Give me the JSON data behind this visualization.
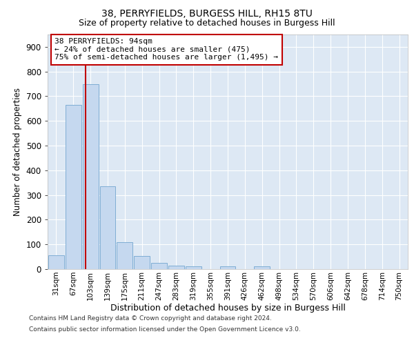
{
  "title1": "38, PERRYFIELDS, BURGESS HILL, RH15 8TU",
  "title2": "Size of property relative to detached houses in Burgess Hill",
  "xlabel": "Distribution of detached houses by size in Burgess Hill",
  "ylabel": "Number of detached properties",
  "footer1": "Contains HM Land Registry data © Crown copyright and database right 2024.",
  "footer2": "Contains public sector information licensed under the Open Government Licence v3.0.",
  "bar_labels": [
    "31sqm",
    "67sqm",
    "103sqm",
    "139sqm",
    "175sqm",
    "211sqm",
    "247sqm",
    "283sqm",
    "319sqm",
    "355sqm",
    "391sqm",
    "426sqm",
    "462sqm",
    "498sqm",
    "534sqm",
    "570sqm",
    "606sqm",
    "642sqm",
    "678sqm",
    "714sqm",
    "750sqm"
  ],
  "bar_values": [
    55,
    665,
    750,
    335,
    108,
    52,
    25,
    15,
    10,
    0,
    10,
    0,
    10,
    0,
    0,
    0,
    0,
    0,
    0,
    0,
    0
  ],
  "bar_color": "#c5d8ef",
  "bar_edgecolor": "#7eadd4",
  "annotation_title": "38 PERRYFIELDS: 94sqm",
  "annotation_line1": "← 24% of detached houses are smaller (475)",
  "annotation_line2": "75% of semi-detached houses are larger (1,495) →",
  "ylim": [
    0,
    950
  ],
  "yticks": [
    0,
    100,
    200,
    300,
    400,
    500,
    600,
    700,
    800,
    900
  ],
  "vline_color": "#c00000",
  "vline_x": 1.73,
  "bg_color": "#ffffff",
  "plot_bg_color": "#dde8f4"
}
